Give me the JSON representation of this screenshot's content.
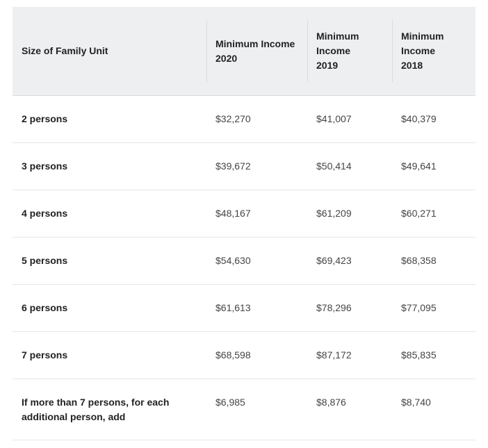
{
  "table": {
    "headers": [
      "Size of Family Unit",
      "Minimum Income 2020",
      "Minimum Income 2019",
      "Minimum Income 2018"
    ],
    "rows": [
      [
        "2 persons",
        "$32,270",
        "$41,007",
        "$40,379"
      ],
      [
        "3 persons",
        "$39,672",
        "$50,414",
        "$49,641"
      ],
      [
        "4 persons",
        "$48,167",
        "$61,209",
        "$60,271"
      ],
      [
        "5 persons",
        "$54,630",
        "$69,423",
        "$68,358"
      ],
      [
        "6 persons",
        "$61,613",
        "$78,296",
        "$77,095"
      ],
      [
        "7 persons",
        "$68,598",
        "$87,172",
        "$85,835"
      ],
      [
        "If more than 7 persons, for each additional person, add",
        "$6,985",
        "$8,876",
        "$8,740"
      ]
    ]
  }
}
